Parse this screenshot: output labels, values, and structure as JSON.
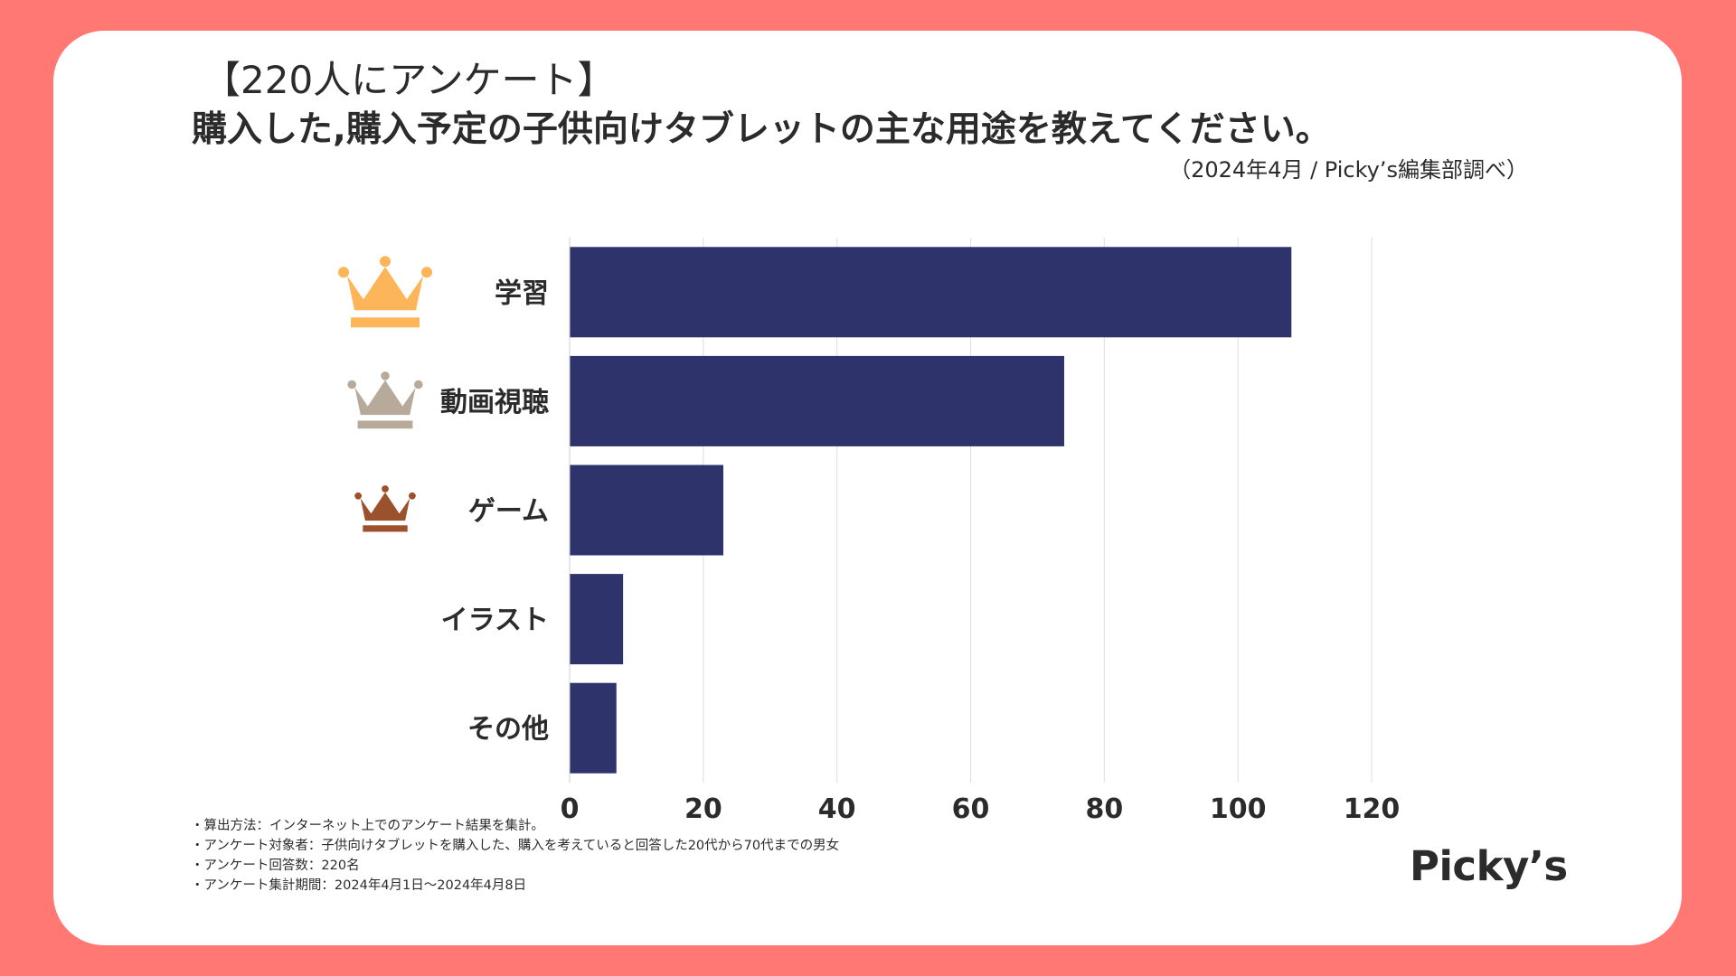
{
  "header": {
    "title_line1": "【220人にアンケート】",
    "title_line2": "購入した,購入予定の子供向けタブレットの主な用途を教えてください。",
    "source": "（2024年4月 / Picky’s編集部調べ）"
  },
  "chart_data": {
    "type": "bar",
    "orientation": "horizontal",
    "categories": [
      "学習",
      "動画視聴",
      "ゲーム",
      "イラスト",
      "その他"
    ],
    "values": [
      108,
      74,
      23,
      8,
      7
    ],
    "xlim": [
      0,
      120
    ],
    "x_ticks": [
      0,
      20,
      40,
      60,
      80,
      100,
      120
    ],
    "grid": "vertical",
    "bar_color": "#2e336b",
    "rank_icons": [
      {
        "category": "学習",
        "icon": "gold-crown-icon",
        "color": "#fdb55a"
      },
      {
        "category": "動画視聴",
        "icon": "silver-crown-icon",
        "color": "#b7aa9b"
      },
      {
        "category": "ゲーム",
        "icon": "bronze-crown-icon",
        "color": "#9b522c"
      }
    ]
  },
  "notes": [
    "・算出方法：インターネット上でのアンケート結果を集計。",
    "・アンケート対象者：子供向けタブレットを購入した、購入を考えていると回答した20代から70代までの男女",
    "・アンケート回答数：220名",
    "・アンケート集計期間：2024年4月1日〜2024年4月8日"
  ],
  "logo": {
    "text": "Picky’s"
  },
  "colors": {
    "background": "#ff7874",
    "card": "#ffffff",
    "text": "#2b2b2b",
    "grid": "#dedede"
  }
}
